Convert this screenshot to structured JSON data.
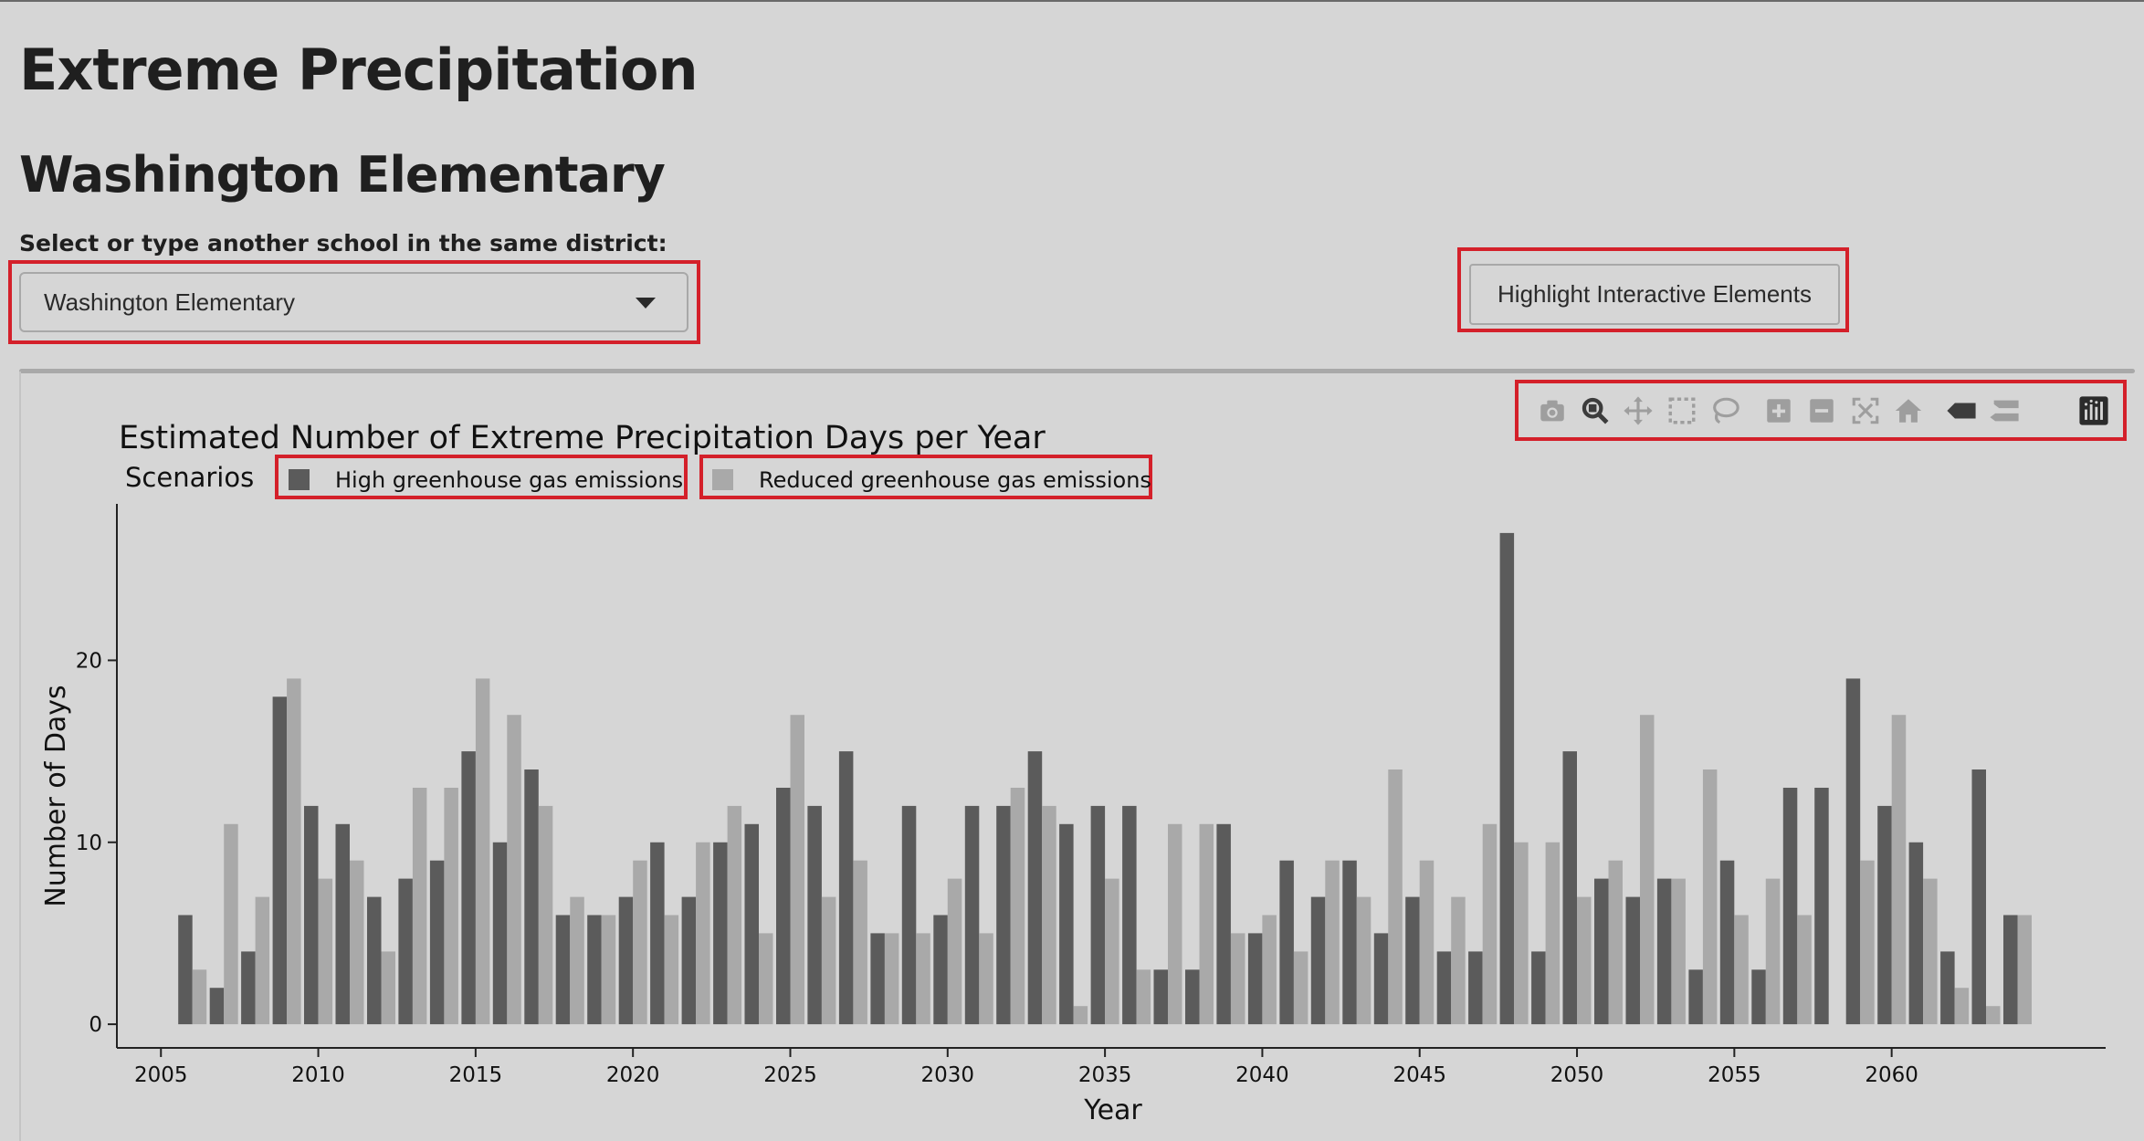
{
  "header": {
    "title": "Extreme Precipitation",
    "school": "Washington Elementary",
    "select_label": "Select or type another school in the same district:"
  },
  "school_select": {
    "value": "Washington Elementary"
  },
  "highlight_button": {
    "label": "Highlight Interactive Elements"
  },
  "modebar": {
    "icons": [
      "camera-icon",
      "zoom-icon",
      "pan-icon",
      "box-select-icon",
      "lasso-select-icon",
      "zoom-in-icon",
      "zoom-out-icon",
      "autoscale-icon",
      "reset-axes-icon",
      "hover-closest-icon",
      "hover-compare-icon",
      "plotly-logo-icon"
    ]
  },
  "colors": {
    "background": "#d6d6d6",
    "high_series": "#5b5b5b",
    "reduced_series": "#a9a9a9",
    "highlight_border": "#d4202a"
  },
  "chart_data": {
    "type": "bar",
    "title": "Estimated Number of Extreme Precipitation Days per Year",
    "legend_title": "Scenarios",
    "legend_placement": "top-left",
    "xlabel": "Year",
    "ylabel": "Number of Days",
    "xlim": [
      2003.6,
      2066.8
    ],
    "ylim": [
      -1.3,
      28.6
    ],
    "xticks": [
      2005,
      2010,
      2015,
      2020,
      2025,
      2030,
      2035,
      2040,
      2045,
      2050,
      2055,
      2060
    ],
    "yticks": [
      0,
      10,
      20
    ],
    "grid": false,
    "x": [
      2006,
      2007,
      2008,
      2009,
      2010,
      2011,
      2012,
      2013,
      2014,
      2015,
      2016,
      2017,
      2018,
      2019,
      2020,
      2021,
      2022,
      2023,
      2024,
      2025,
      2026,
      2027,
      2028,
      2029,
      2030,
      2031,
      2032,
      2033,
      2034,
      2035,
      2036,
      2037,
      2038,
      2039,
      2040,
      2041,
      2042,
      2043,
      2044,
      2045,
      2046,
      2047,
      2048,
      2049,
      2050,
      2051,
      2052,
      2053,
      2054,
      2055,
      2056,
      2057,
      2058,
      2059,
      2060,
      2061,
      2062,
      2063,
      2064
    ],
    "series": [
      {
        "name": "High greenhouse gas emissions",
        "color": "#5b5b5b",
        "values": [
          6,
          2,
          4,
          18,
          12,
          11,
          7,
          8,
          9,
          15,
          10,
          14,
          6,
          6,
          7,
          10,
          7,
          10,
          11,
          13,
          12,
          15,
          5,
          12,
          6,
          12,
          12,
          15,
          11,
          12,
          12,
          3,
          3,
          11,
          5,
          9,
          7,
          9,
          5,
          7,
          4,
          4,
          27,
          4,
          15,
          8,
          7,
          8,
          3,
          9,
          3,
          13,
          13,
          19,
          12,
          10,
          4,
          14,
          6
        ]
      },
      {
        "name": "Reduced greenhouse gas emissions",
        "color": "#a9a9a9",
        "values": [
          3,
          11,
          7,
          19,
          8,
          9,
          4,
          13,
          13,
          19,
          17,
          12,
          7,
          6,
          9,
          6,
          10,
          12,
          5,
          17,
          7,
          9,
          5,
          5,
          8,
          5,
          13,
          12,
          1,
          8,
          3,
          11,
          11,
          5,
          6,
          4,
          9,
          7,
          14,
          9,
          7,
          11,
          10,
          10,
          7,
          9,
          17,
          8,
          14,
          6,
          8,
          6,
          0,
          9,
          17,
          8,
          2,
          1,
          6
        ]
      }
    ]
  }
}
